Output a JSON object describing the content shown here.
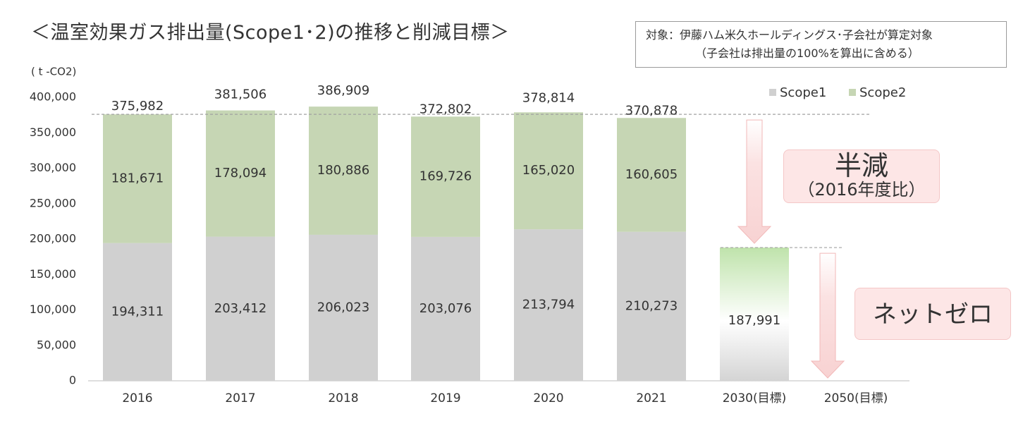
{
  "title": "＜温室効果ガス排出量(Scope1･2)の推移と削減目標＞",
  "scope_note": {
    "line1": "対象：伊藤ハム米久ホールディングス･子会社が算定対象",
    "line2": "（子会社は排出量の100%を算出に含める）"
  },
  "callouts": {
    "half_title": "半減",
    "half_sub": "（2016年度比）",
    "net_zero": "ネットゼロ"
  },
  "colors": {
    "scope1": "#d0d0d0",
    "scope2": "#c6d6b4",
    "target_top": "#c2e3b0",
    "arrow": "#f9dada",
    "arrow_edge": "#f2b8b8",
    "dashed": "#a0a0a0"
  },
  "chart_data": {
    "type": "bar",
    "stacked": true,
    "unit_label": "( t -CO2)",
    "categories": [
      "2016",
      "2017",
      "2018",
      "2019",
      "2020",
      "2021",
      "2030(目標)",
      "2050(目標)"
    ],
    "series": [
      {
        "name": "Scope1",
        "values": [
          194311,
          203412,
          206023,
          203076,
          213794,
          210273,
          null,
          null
        ],
        "labels": [
          "194,311",
          "203,412",
          "206,023",
          "203,076",
          "213,794",
          "210,273",
          null,
          null
        ]
      },
      {
        "name": "Scope2",
        "values": [
          181671,
          178094,
          180886,
          169726,
          165020,
          160605,
          null,
          null
        ],
        "labels": [
          "181,671",
          "178,094",
          "180,886",
          "169,726",
          "165,020",
          "160,605",
          null,
          null
        ]
      }
    ],
    "totals": [
      375982,
      381506,
      386909,
      372802,
      378814,
      370878,
      null,
      null
    ],
    "total_labels": [
      "375,982",
      "381,506",
      "386,909",
      "372,802",
      "378,814",
      "370,878",
      null,
      null
    ],
    "target": {
      "category": "2030(目標)",
      "value": 187991,
      "label": "187,991"
    },
    "reference_lines": [
      375982,
      187991
    ],
    "ylim": [
      0,
      400000
    ],
    "yticks": [
      0,
      50000,
      100000,
      150000,
      200000,
      250000,
      300000,
      350000,
      400000
    ],
    "ytick_labels": [
      "0",
      "50,000",
      "100,000",
      "150,000",
      "200,000",
      "250,000",
      "300,000",
      "350,000",
      "400,000"
    ],
    "legend": {
      "position": "top-right",
      "entries": [
        "Scope1",
        "Scope2"
      ]
    },
    "grid": false
  }
}
